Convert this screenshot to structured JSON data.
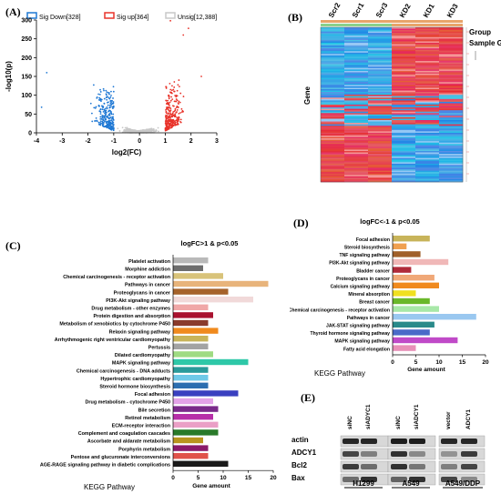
{
  "panels": {
    "A": {
      "label": "(A)",
      "legend": [
        "Sig Down[328]",
        "Sig up[364]",
        "Unsig[12,388]"
      ],
      "legend_colors": [
        "#1f78d4",
        "#e8332a",
        "#c8c8c8"
      ],
      "xlabel": "log2(FC)",
      "ylabel": "-log10(p)",
      "xticks": [
        "-4",
        "-3",
        "-2",
        "-1",
        "0",
        "1",
        "2",
        "3"
      ],
      "yticks": [
        "0",
        "50",
        "100",
        "150",
        "200",
        "250",
        "300"
      ]
    },
    "B": {
      "label": "(B)",
      "columns": [
        "Scr2",
        "Scr1",
        "Scr3",
        "KD2",
        "KD1",
        "KD3"
      ],
      "row_label": "Gene",
      "legend": [
        "Group",
        "Sample Gro"
      ]
    },
    "C": {
      "label": "(C)",
      "title": "logFC>1 & p<0.05",
      "xlabel": "KEGG Pathway",
      "xlabel2": "Gene amount",
      "xticks": [
        "0",
        "5",
        "10",
        "15",
        "20"
      ]
    },
    "D": {
      "label": "(D)",
      "title": "logFC<-1 & p<0.05",
      "xlabel": "KEGG Pathway",
      "xlabel2": "Gene amount",
      "xticks": [
        "0",
        "5",
        "10",
        "15",
        "20"
      ]
    },
    "E": {
      "label": "(E)",
      "lanes": [
        "siNC",
        "siADYC1",
        "siNC",
        "siADCY1",
        "vector",
        "ADCY1"
      ],
      "rows": [
        "actin",
        "ADCY1",
        "Bcl2",
        "Bax"
      ],
      "groups": [
        "H1299",
        "A549",
        "A549/DDP"
      ]
    }
  },
  "chart_data": [
    {
      "type": "scatter",
      "legend": [
        "Sig Down[328]",
        "Sig up[364]",
        "Unsig[12,388]"
      ],
      "xlabel": "log2(FC)",
      "ylabel": "-log10(p)",
      "xlim": [
        -4,
        3
      ],
      "ylim": [
        0,
        300
      ],
      "legend_position": "top"
    },
    {
      "type": "bar",
      "title": "logFC>1 & p<0.05",
      "xlabel": "Gene amount",
      "xlim": [
        0,
        20
      ],
      "categories": [
        "Platelet activation",
        "Morphine addiction",
        "Chemical carcinogenesis - receptor activation",
        "Pathways in cancer",
        "Proteoglycans in cancer",
        "PI3K-Akt signaling pathway",
        "Drug metabolism - other enzymes",
        "Protein digestion and absorption",
        "Metabolism of xenobiotics by cytochrome P450",
        "Relaxin signaling pathway",
        "Arrhythmogenic right ventricular cardiomyopathy",
        "Pertussis",
        "Dilated cardiomyopathy",
        "MAPK signaling pathway",
        "Chemical carcinogenesis - DNA adducts",
        "Hypertrophic cardiomyopathy",
        "Steroid hormone biosynthesis",
        "Focal adhesion",
        "Drug metabolism - cytochrome P450",
        "Bile secretion",
        "Retinol metabolism",
        "ECM-receptor interaction",
        "Complement and coagulation cascades",
        "Ascorbate and aldarate metabolism",
        "Porphyrin metabolism",
        "Pentose and glucuronate interconversions",
        "AGE-RAGE signaling pathway in diabetic complications"
      ],
      "values": [
        7,
        6,
        10,
        19,
        11,
        16,
        7,
        8,
        7,
        9,
        7,
        7,
        8,
        15,
        7,
        7,
        7,
        13,
        8,
        9,
        8,
        9,
        9,
        6,
        7,
        7,
        11
      ],
      "colors": [
        "#b9b9b9",
        "#6e6e6e",
        "#d8c37a",
        "#e8b47b",
        "#a5622a",
        "#f1d9d9",
        "#f0a7a7",
        "#a9122f",
        "#8a3b2c",
        "#f08a1e",
        "#c8b45a",
        "#a3a3a3",
        "#9fdb82",
        "#2ec8a8",
        "#2a9a9a",
        "#6fc9e8",
        "#2d6fb0",
        "#3a40c0",
        "#e3a3e8",
        "#7a2a8a",
        "#b72fa8",
        "#ea9fc6",
        "#2a7a2a",
        "#b9951e",
        "#8a1a6a",
        "#e0524a",
        "#1a1a1a"
      ]
    },
    {
      "type": "bar",
      "title": "logFC<-1 & p<0.05",
      "xlabel": "Gene amount",
      "xlim": [
        0,
        20
      ],
      "categories": [
        "Focal adhesion",
        "Steroid biosynthesis",
        "TNF signaling pathway",
        "PI3K-Akt signaling pathway",
        "Bladder cancer",
        "Proteoglycans in cancer",
        "Calcium signaling pathway",
        "Mineral absorption",
        "Breast cancer",
        "Chemical carcinogenesis - receptor activation",
        "Pathways in cancer",
        "JAK-STAT signaling pathway",
        "Thyroid hormone signaling pathway",
        "MAPK signaling pathway",
        "Fatty acid elongation"
      ],
      "values": [
        8,
        3,
        6,
        12,
        4,
        9,
        10,
        5,
        8,
        10,
        18,
        9,
        8,
        14,
        5
      ],
      "colors": [
        "#c8b45a",
        "#f0a050",
        "#a0602a",
        "#f0b8b8",
        "#b02a3a",
        "#f0a878",
        "#f08a1e",
        "#f0e020",
        "#6ab82a",
        "#a8e8a8",
        "#9ac8f0",
        "#2a8a8a",
        "#4a6ac8",
        "#c04ac8",
        "#e890b8"
      ]
    }
  ]
}
